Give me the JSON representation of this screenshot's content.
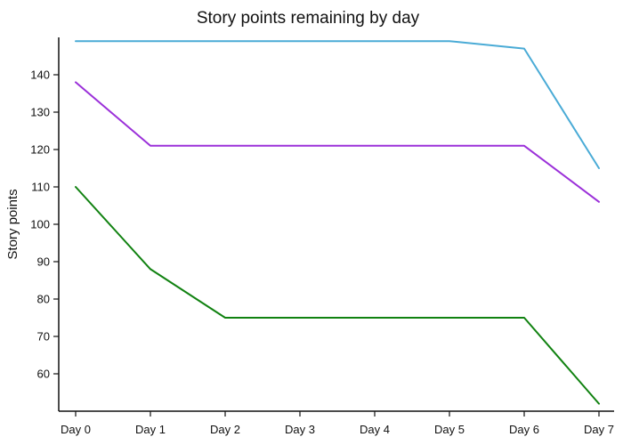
{
  "chart_data": {
    "type": "line",
    "title": "Story points remaining by day",
    "xlabel": "",
    "ylabel": "Story points",
    "categories": [
      "Day 0",
      "Day 1",
      "Day 2",
      "Day 3",
      "Day 4",
      "Day 5",
      "Day 6",
      "Day 7"
    ],
    "yticks": [
      60,
      70,
      80,
      90,
      100,
      110,
      120,
      130,
      140
    ],
    "ylim": [
      50,
      150
    ],
    "grid": false,
    "legend": "none",
    "series": [
      {
        "color": "#4aabd6",
        "values": [
          149,
          149,
          149,
          149,
          149,
          149,
          147,
          115
        ]
      },
      {
        "color": "#9b30d9",
        "values": [
          138,
          121,
          121,
          121,
          121,
          121,
          121,
          106
        ]
      },
      {
        "color": "#118211",
        "values": [
          110,
          88,
          75,
          75,
          75,
          75,
          75,
          52
        ]
      }
    ]
  }
}
